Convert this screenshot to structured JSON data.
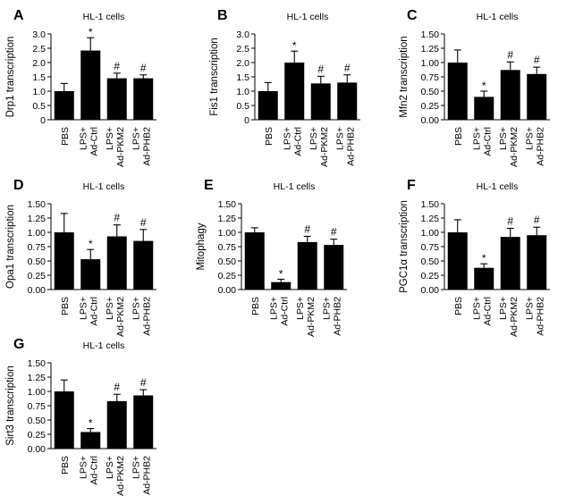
{
  "figure": {
    "panels": [
      {
        "letter": "A",
        "title": "HL-1 cells",
        "ylabel": "Drp1 transcription",
        "chart_data": {
          "type": "bar",
          "categories": [
            "PBS",
            "LPS+ Ad-Ctrl",
            "LPS+ Ad-PKM2",
            "LPS+ Ad-PHB2"
          ],
          "values": [
            1.0,
            2.42,
            1.45,
            1.45
          ],
          "errors": [
            0.27,
            0.45,
            0.18,
            0.12
          ],
          "significance": [
            "",
            "*",
            "#",
            "#"
          ],
          "ylim": [
            0,
            3.0
          ],
          "yticks": [
            "0",
            "0.5",
            "1.0",
            "1.5",
            "2.0",
            "2.5",
            "3.0"
          ],
          "color": "#000000"
        }
      },
      {
        "letter": "B",
        "title": "HL-1 cells",
        "ylabel": "Fis1 transcription",
        "chart_data": {
          "type": "bar",
          "categories": [
            "PBS",
            "LPS+ Ad-Ctrl",
            "LPS+ Ad-PKM2",
            "LPS+ Ad-PHB2"
          ],
          "values": [
            1.0,
            2.0,
            1.27,
            1.3
          ],
          "errors": [
            0.3,
            0.4,
            0.25,
            0.27
          ],
          "significance": [
            "",
            "*",
            "#",
            "#"
          ],
          "ylim": [
            0,
            3.0
          ],
          "yticks": [
            "0",
            "0.5",
            "1.0",
            "1.5",
            "2.0",
            "2.5",
            "3.0"
          ],
          "color": "#000000"
        }
      },
      {
        "letter": "C",
        "title": "HL-1 cells",
        "ylabel": "Mfn2 transcription",
        "chart_data": {
          "type": "bar",
          "categories": [
            "PBS",
            "LPS+ Ad-Ctrl",
            "LPS+ Ad-PKM2",
            "LPS+ Ad-PHB2"
          ],
          "values": [
            1.0,
            0.4,
            0.87,
            0.8
          ],
          "errors": [
            0.22,
            0.1,
            0.14,
            0.12
          ],
          "significance": [
            "",
            "*",
            "#",
            "#"
          ],
          "ylim": [
            0,
            1.5
          ],
          "yticks": [
            "0.00",
            "0.25",
            "0.50",
            "0.75",
            "1.00",
            "1.25",
            "1.50"
          ],
          "color": "#000000"
        }
      },
      {
        "letter": "D",
        "title": "HL-1 cells",
        "ylabel": "Opa1 transcription",
        "chart_data": {
          "type": "bar",
          "categories": [
            "PBS",
            "LPS+ Ad-Ctrl",
            "LPS+ Ad-PKM2",
            "LPS+ Ad-PHB2"
          ],
          "values": [
            1.0,
            0.53,
            0.93,
            0.85
          ],
          "errors": [
            0.33,
            0.17,
            0.2,
            0.2
          ],
          "significance": [
            "",
            "*",
            "#",
            "#"
          ],
          "ylim": [
            0,
            1.5
          ],
          "yticks": [
            "0.00",
            "0.25",
            "0.50",
            "0.75",
            "1.00",
            "1.25",
            "1.50"
          ],
          "color": "#000000"
        }
      },
      {
        "letter": "E",
        "title": "HL-1 cells",
        "ylabel": "Mitophagy",
        "chart_data": {
          "type": "bar",
          "categories": [
            "PBS",
            "LPS+ Ad-Ctrl",
            "LPS+ Ad-PKM2",
            "LPS+ Ad-PHB2"
          ],
          "values": [
            1.0,
            0.13,
            0.83,
            0.78
          ],
          "errors": [
            0.08,
            0.05,
            0.1,
            0.1
          ],
          "significance": [
            "",
            "*",
            "#",
            "#"
          ],
          "ylim": [
            0,
            1.5
          ],
          "yticks": [
            "0.00",
            "0.25",
            "0.50",
            "0.75",
            "1.00",
            "1.25",
            "1.50"
          ],
          "color": "#000000"
        }
      },
      {
        "letter": "F",
        "title": "HL-1 cells",
        "ylabel": "PGC1α transcription",
        "chart_data": {
          "type": "bar",
          "categories": [
            "PBS",
            "LPS+ Ad-Ctrl",
            "LPS+ Ad-PKM2",
            "LPS+ Ad-PHB2"
          ],
          "values": [
            1.0,
            0.38,
            0.92,
            0.95
          ],
          "errors": [
            0.22,
            0.07,
            0.15,
            0.14
          ],
          "significance": [
            "",
            "*",
            "#",
            "#"
          ],
          "ylim": [
            0,
            1.5
          ],
          "yticks": [
            "0.00",
            "0.25",
            "0.50",
            "0.75",
            "1.00",
            "1.25",
            "1.50"
          ],
          "color": "#000000"
        }
      },
      {
        "letter": "G",
        "title": "HL-1 cells",
        "ylabel": "Sirt3 transcription",
        "chart_data": {
          "type": "bar",
          "categories": [
            "PBS",
            "LPS+ Ad-Ctrl",
            "LPS+ Ad-PKM2",
            "LPS+ Ad-PHB2"
          ],
          "values": [
            1.0,
            0.29,
            0.83,
            0.93
          ],
          "errors": [
            0.2,
            0.06,
            0.12,
            0.1
          ],
          "significance": [
            "",
            "*",
            "#",
            "#"
          ],
          "ylim": [
            0,
            1.5
          ],
          "yticks": [
            "0.00",
            "0.25",
            "0.50",
            "0.75",
            "1.00",
            "1.25",
            "1.50"
          ],
          "color": "#000000"
        }
      }
    ]
  }
}
